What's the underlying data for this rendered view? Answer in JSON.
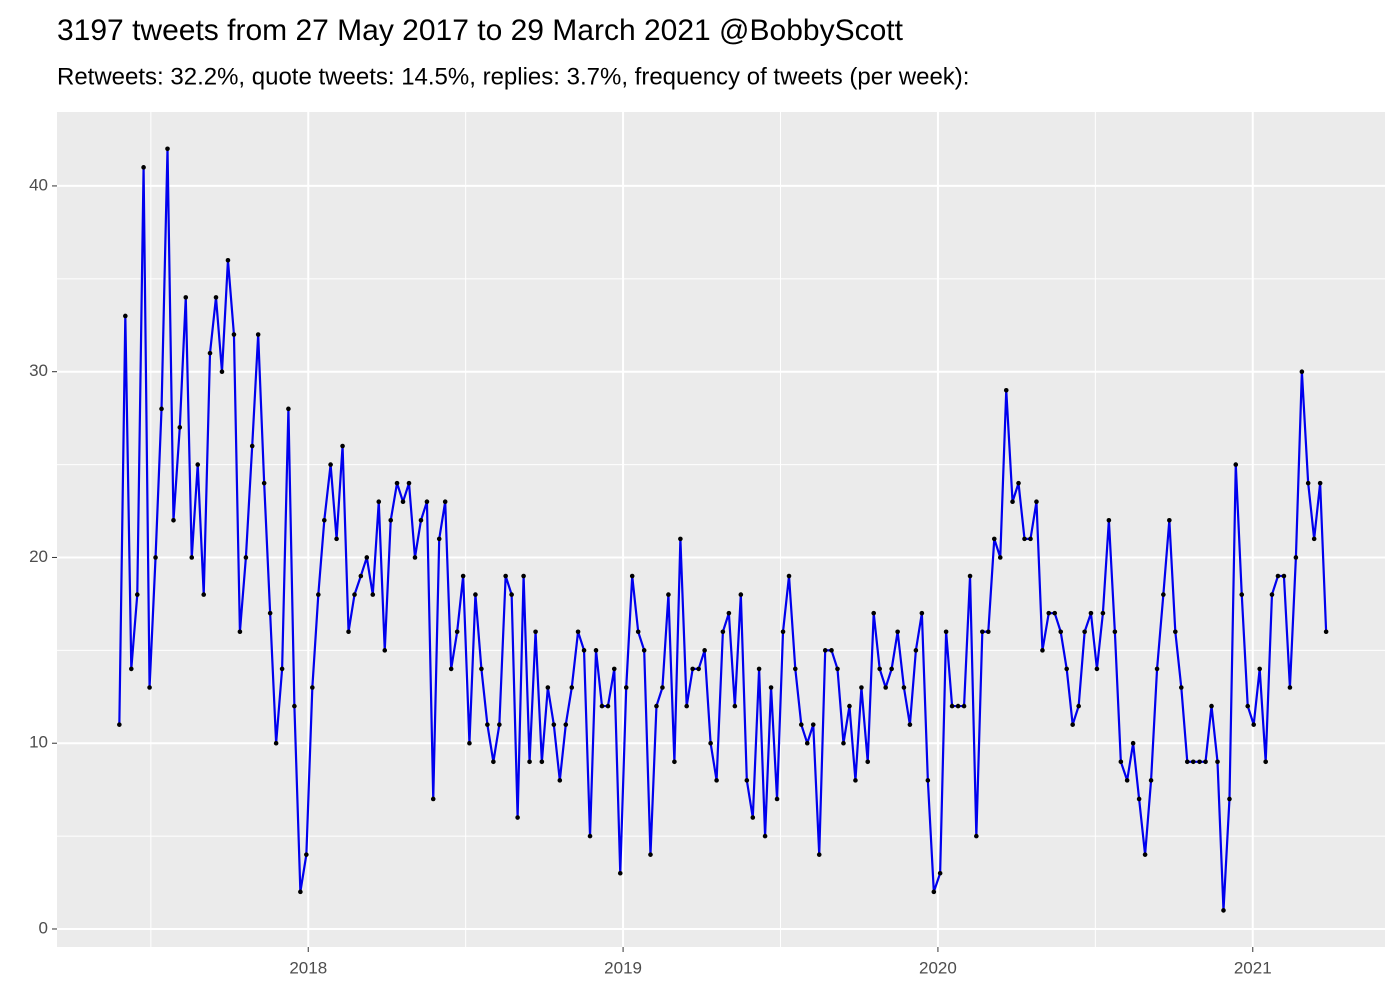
{
  "chart_data": {
    "type": "line",
    "title": "3197 tweets from 27 May 2017 to 29 March 2021 @BobbyScott",
    "subtitle": "Retweets: 32.2%, quote tweets: 14.5%, replies: 3.7%, frequency of tweets (per week):",
    "x": [
      2017.4,
      2017.419,
      2017.438,
      2017.457,
      2017.477,
      2017.496,
      2017.515,
      2017.534,
      2017.553,
      2017.572,
      2017.592,
      2017.611,
      2017.63,
      2017.649,
      2017.668,
      2017.688,
      2017.707,
      2017.726,
      2017.745,
      2017.764,
      2017.783,
      2017.802,
      2017.822,
      2017.841,
      2017.86,
      2017.879,
      2017.898,
      2017.917,
      2017.937,
      2017.956,
      2017.975,
      2017.994,
      2018.013,
      2018.032,
      2018.051,
      2018.071,
      2018.09,
      2018.109,
      2018.128,
      2018.147,
      2018.167,
      2018.186,
      2018.205,
      2018.224,
      2018.243,
      2018.262,
      2018.282,
      2018.301,
      2018.32,
      2018.339,
      2018.358,
      2018.377,
      2018.397,
      2018.416,
      2018.435,
      2018.454,
      2018.473,
      2018.492,
      2018.512,
      2018.531,
      2018.55,
      2018.569,
      2018.588,
      2018.607,
      2018.627,
      2018.646,
      2018.665,
      2018.684,
      2018.703,
      2018.722,
      2018.742,
      2018.761,
      2018.78,
      2018.799,
      2018.818,
      2018.837,
      2018.857,
      2018.876,
      2018.895,
      2018.914,
      2018.933,
      2018.952,
      2018.972,
      2018.991,
      2019.01,
      2019.029,
      2019.048,
      2019.067,
      2019.087,
      2019.106,
      2019.125,
      2019.144,
      2019.163,
      2019.182,
      2019.202,
      2019.221,
      2019.24,
      2019.259,
      2019.278,
      2019.297,
      2019.317,
      2019.336,
      2019.355,
      2019.374,
      2019.393,
      2019.412,
      2019.432,
      2019.451,
      2019.47,
      2019.489,
      2019.508,
      2019.527,
      2019.547,
      2019.566,
      2019.585,
      2019.604,
      2019.623,
      2019.642,
      2019.662,
      2019.681,
      2019.7,
      2019.719,
      2019.738,
      2019.757,
      2019.777,
      2019.796,
      2019.815,
      2019.834,
      2019.853,
      2019.872,
      2019.892,
      2019.911,
      2019.93,
      2019.949,
      2019.968,
      2019.987,
      2020.007,
      2020.026,
      2020.045,
      2020.064,
      2020.083,
      2020.102,
      2020.122,
      2020.141,
      2020.16,
      2020.179,
      2020.198,
      2020.217,
      2020.237,
      2020.256,
      2020.275,
      2020.294,
      2020.313,
      2020.332,
      2020.352,
      2020.371,
      2020.39,
      2020.409,
      2020.428,
      2020.447,
      2020.466,
      2020.486,
      2020.505,
      2020.524,
      2020.543,
      2020.562,
      2020.581,
      2020.601,
      2020.62,
      2020.639,
      2020.658,
      2020.677,
      2020.696,
      2020.716,
      2020.735,
      2020.754,
      2020.773,
      2020.792,
      2020.811,
      2020.831,
      2020.85,
      2020.869,
      2020.888,
      2020.907,
      2020.926,
      2020.946,
      2020.965,
      2020.984,
      2021.003,
      2021.022,
      2021.041,
      2021.061,
      2021.08,
      2021.099,
      2021.118,
      2021.137,
      2021.156,
      2021.176,
      2021.195,
      2021.214,
      2021.233
    ],
    "series": [
      {
        "color": "#0000ee",
        "marker_color": "#000000",
        "values": [
          11,
          33,
          14,
          18,
          41,
          13,
          20,
          28,
          42,
          22,
          27,
          34,
          20,
          25,
          18,
          31,
          34,
          30,
          36,
          32,
          16,
          20,
          26,
          32,
          24,
          17,
          10,
          14,
          28,
          12,
          2,
          4,
          13,
          18,
          22,
          25,
          21,
          26,
          16,
          18,
          19,
          20,
          18,
          23,
          15,
          22,
          24,
          23,
          24,
          20,
          22,
          23,
          7,
          21,
          23,
          14,
          16,
          19,
          10,
          18,
          14,
          11,
          9,
          11,
          19,
          18,
          6,
          19,
          9,
          16,
          9,
          13,
          11,
          8,
          11,
          13,
          16,
          15,
          5,
          15,
          12,
          12,
          14,
          3,
          13,
          19,
          16,
          15,
          4,
          12,
          13,
          18,
          9,
          21,
          12,
          14,
          14,
          15,
          10,
          8,
          16,
          17,
          12,
          18,
          8,
          6,
          14,
          5,
          13,
          7,
          16,
          19,
          14,
          11,
          10,
          11,
          4,
          15,
          15,
          14,
          10,
          12,
          8,
          13,
          9,
          17,
          14,
          13,
          14,
          16,
          13,
          11,
          15,
          17,
          8,
          2,
          3,
          16,
          12,
          12,
          12,
          19,
          5,
          16,
          16,
          21,
          20,
          29,
          23,
          24,
          21,
          21,
          23,
          15,
          17,
          17,
          16,
          14,
          11,
          12,
          16,
          17,
          14,
          17,
          22,
          16,
          9,
          8,
          10,
          7,
          4,
          8,
          14,
          18,
          22,
          16,
          13,
          9,
          9,
          9,
          9,
          12,
          9,
          1,
          7,
          25,
          18,
          12,
          11,
          14,
          9,
          18,
          19,
          19,
          13,
          20,
          30,
          24,
          21,
          24,
          16
        ]
      }
    ],
    "xlim": [
      2017.202,
      2021.42
    ],
    "ylim": [
      -0.97,
      43.98
    ],
    "xticks": [
      2018,
      2019,
      2020,
      2021
    ],
    "yticks": [
      0,
      10,
      20,
      30,
      40
    ],
    "xminor": [
      2017.5,
      2018.5,
      2019.5,
      2020.5
    ],
    "yminor": [
      5,
      15,
      25,
      35
    ],
    "grid": true
  }
}
